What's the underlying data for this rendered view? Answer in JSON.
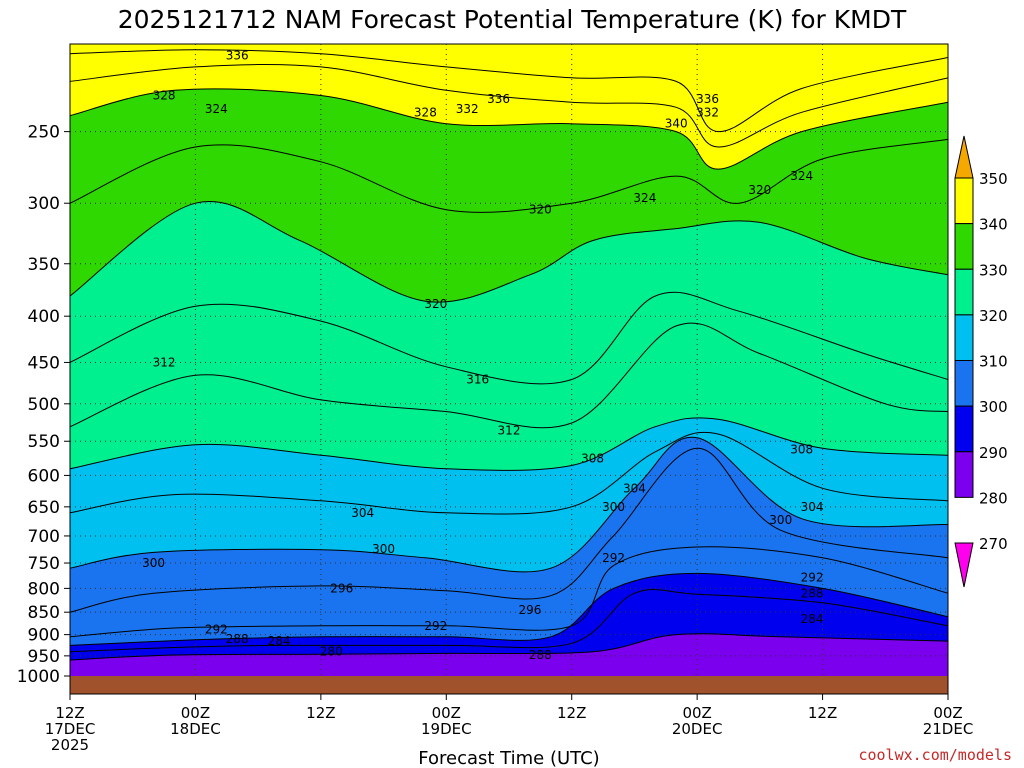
{
  "chart_data": {
    "type": "heatmap",
    "title": "2025121712 NAM Forecast Potential Temperature (K) for KMDT",
    "xlabel": "Forecast Time (UTC)",
    "ylabel": "",
    "x_ticks": [
      {
        "hour": 0,
        "line1": "12Z",
        "line2": "17DEC",
        "line3": "2025"
      },
      {
        "hour": 12,
        "line1": "00Z",
        "line2": "18DEC",
        "line3": ""
      },
      {
        "hour": 24,
        "line1": "12Z",
        "line2": "",
        "line3": ""
      },
      {
        "hour": 36,
        "line1": "00Z",
        "line2": "19DEC",
        "line3": ""
      },
      {
        "hour": 48,
        "line1": "12Z",
        "line2": "",
        "line3": ""
      },
      {
        "hour": 60,
        "line1": "00Z",
        "line2": "20DEC",
        "line3": ""
      },
      {
        "hour": 72,
        "line1": "12Z",
        "line2": "",
        "line3": ""
      },
      {
        "hour": 84,
        "line1": "00Z",
        "line2": "21DEC",
        "line3": ""
      }
    ],
    "x_range": [
      0,
      84
    ],
    "y_ticks": [
      250,
      300,
      350,
      400,
      450,
      500,
      550,
      600,
      650,
      700,
      750,
      800,
      850,
      900,
      950,
      1000
    ],
    "y_range": [
      200,
      1000
    ],
    "y_scale": "log-pressure",
    "grid": true,
    "colorbar": {
      "position": "right",
      "labels": [
        350,
        340,
        330,
        320,
        310,
        300,
        290,
        280,
        270
      ],
      "bands": [
        {
          "from": 340,
          "to": 350,
          "color": "#f5a800"
        },
        {
          "from": 330,
          "to": 340,
          "color": "#ffff00"
        },
        {
          "from": 320,
          "to": 330,
          "color": "#2ed800"
        },
        {
          "from": 310,
          "to": 320,
          "color": "#00f090"
        },
        {
          "from": 300,
          "to": 310,
          "color": "#00c0f0"
        },
        {
          "from": 290,
          "to": 300,
          "color": "#1a74ef"
        },
        {
          "from": 280,
          "to": 290,
          "color": "#0000ee"
        },
        {
          "from": 270,
          "to": 280,
          "color": "#7a00ee"
        },
        {
          "from": 260,
          "to": 270,
          "color": "#ff00ee"
        }
      ]
    },
    "contours": [
      {
        "level": 280,
        "points": [
          [
            0,
            960
          ],
          [
            10,
            948
          ],
          [
            24,
            946
          ],
          [
            36,
            944
          ],
          [
            50,
            940
          ],
          [
            58,
            900
          ],
          [
            68,
            905
          ],
          [
            84,
            915
          ]
        ]
      },
      {
        "level": 284,
        "points": [
          [
            0,
            940
          ],
          [
            10,
            930
          ],
          [
            20,
            925
          ],
          [
            36,
            925
          ],
          [
            48,
            920
          ],
          [
            54,
            810
          ],
          [
            60,
            812
          ],
          [
            72,
            830
          ],
          [
            84,
            880
          ]
        ]
      },
      {
        "level": 288,
        "points": [
          [
            0,
            925
          ],
          [
            12,
            912
          ],
          [
            24,
            905
          ],
          [
            36,
            905
          ],
          [
            46,
            905
          ],
          [
            52,
            800
          ],
          [
            60,
            770
          ],
          [
            72,
            800
          ],
          [
            84,
            860
          ]
        ]
      },
      {
        "level": 292,
        "points": [
          [
            0,
            905
          ],
          [
            10,
            885
          ],
          [
            24,
            880
          ],
          [
            36,
            880
          ],
          [
            48,
            880
          ],
          [
            52,
            755
          ],
          [
            60,
            720
          ],
          [
            72,
            740
          ],
          [
            84,
            810
          ]
        ]
      },
      {
        "level": 296,
        "points": [
          [
            0,
            850
          ],
          [
            8,
            810
          ],
          [
            24,
            795
          ],
          [
            36,
            805
          ],
          [
            46,
            815
          ],
          [
            52,
            700
          ],
          [
            60,
            560
          ],
          [
            68,
            690
          ],
          [
            84,
            740
          ]
        ]
      },
      {
        "level": 300,
        "points": [
          [
            0,
            760
          ],
          [
            8,
            730
          ],
          [
            24,
            725
          ],
          [
            34,
            740
          ],
          [
            46,
            760
          ],
          [
            54,
            620
          ],
          [
            60,
            545
          ],
          [
            70,
            670
          ],
          [
            84,
            680
          ]
        ]
      },
      {
        "level": 304,
        "points": [
          [
            0,
            660
          ],
          [
            10,
            630
          ],
          [
            24,
            640
          ],
          [
            36,
            660
          ],
          [
            48,
            650
          ],
          [
            56,
            565
          ],
          [
            62,
            540
          ],
          [
            72,
            620
          ],
          [
            84,
            640
          ]
        ]
      },
      {
        "level": 308,
        "points": [
          [
            0,
            590
          ],
          [
            12,
            555
          ],
          [
            24,
            570
          ],
          [
            36,
            590
          ],
          [
            48,
            585
          ],
          [
            56,
            530
          ],
          [
            62,
            520
          ],
          [
            72,
            560
          ],
          [
            84,
            570
          ]
        ]
      },
      {
        "level": 312,
        "points": [
          [
            0,
            530
          ],
          [
            12,
            465
          ],
          [
            24,
            495
          ],
          [
            36,
            510
          ],
          [
            48,
            525
          ],
          [
            58,
            410
          ],
          [
            66,
            440
          ],
          [
            78,
            500
          ],
          [
            84,
            510
          ]
        ]
      },
      {
        "level": 316,
        "points": [
          [
            0,
            450
          ],
          [
            12,
            390
          ],
          [
            24,
            405
          ],
          [
            36,
            455
          ],
          [
            48,
            470
          ],
          [
            56,
            380
          ],
          [
            64,
            395
          ],
          [
            76,
            440
          ],
          [
            84,
            470
          ]
        ]
      },
      {
        "level": 320,
        "points": [
          [
            0,
            380
          ],
          [
            12,
            300
          ],
          [
            22,
            330
          ],
          [
            34,
            385
          ],
          [
            44,
            360
          ],
          [
            50,
            330
          ],
          [
            58,
            320
          ],
          [
            66,
            315
          ],
          [
            76,
            345
          ],
          [
            84,
            360
          ]
        ]
      },
      {
        "level": 324,
        "points": [
          [
            0,
            300
          ],
          [
            12,
            260
          ],
          [
            24,
            270
          ],
          [
            36,
            305
          ],
          [
            48,
            300
          ],
          [
            58,
            280
          ],
          [
            64,
            300
          ],
          [
            72,
            268
          ],
          [
            84,
            255
          ]
        ]
      },
      {
        "level": 328,
        "points": [
          [
            0,
            240
          ],
          [
            10,
            225
          ],
          [
            24,
            228
          ],
          [
            36,
            245
          ],
          [
            48,
            245
          ],
          [
            58,
            250
          ],
          [
            62,
            275
          ],
          [
            70,
            250
          ],
          [
            84,
            232
          ]
        ]
      },
      {
        "level": 332,
        "points": [
          [
            0,
            220
          ],
          [
            12,
            212
          ],
          [
            24,
            212
          ],
          [
            36,
            225
          ],
          [
            48,
            232
          ],
          [
            58,
            235
          ],
          [
            62,
            260
          ],
          [
            70,
            238
          ],
          [
            84,
            218
          ]
        ]
      },
      {
        "level": 336,
        "points": [
          [
            0,
            205
          ],
          [
            12,
            203
          ],
          [
            24,
            205
          ],
          [
            36,
            212
          ],
          [
            48,
            218
          ],
          [
            58,
            220
          ],
          [
            62,
            250
          ],
          [
            70,
            224
          ],
          [
            84,
            207
          ]
        ]
      }
    ],
    "contour_labels": [
      {
        "text": "336",
        "hour": 16,
        "p": 206
      },
      {
        "text": "328",
        "hour": 9,
        "p": 228
      },
      {
        "text": "324",
        "hour": 14,
        "p": 236
      },
      {
        "text": "328",
        "hour": 34,
        "p": 238
      },
      {
        "text": "332",
        "hour": 38,
        "p": 236
      },
      {
        "text": "336",
        "hour": 41,
        "p": 230
      },
      {
        "text": "336",
        "hour": 61,
        "p": 230
      },
      {
        "text": "332",
        "hour": 61,
        "p": 238
      },
      {
        "text": "340",
        "hour": 58,
        "p": 245
      },
      {
        "text": "324",
        "hour": 70,
        "p": 280
      },
      {
        "text": "320",
        "hour": 66,
        "p": 290
      },
      {
        "text": "324",
        "hour": 55,
        "p": 296
      },
      {
        "text": "320",
        "hour": 45,
        "p": 305
      },
      {
        "text": "320",
        "hour": 35,
        "p": 388
      },
      {
        "text": "312",
        "hour": 9,
        "p": 450
      },
      {
        "text": "316",
        "hour": 39,
        "p": 470
      },
      {
        "text": "312",
        "hour": 42,
        "p": 535
      },
      {
        "text": "308",
        "hour": 50,
        "p": 575
      },
      {
        "text": "308",
        "hour": 70,
        "p": 562
      },
      {
        "text": "304",
        "hour": 54,
        "p": 620
      },
      {
        "text": "304",
        "hour": 28,
        "p": 660
      },
      {
        "text": "300",
        "hour": 52,
        "p": 650
      },
      {
        "text": "304",
        "hour": 71,
        "p": 650
      },
      {
        "text": "300",
        "hour": 68,
        "p": 672
      },
      {
        "text": "300",
        "hour": 30,
        "p": 724
      },
      {
        "text": "300",
        "hour": 8,
        "p": 750
      },
      {
        "text": "292",
        "hour": 52,
        "p": 740
      },
      {
        "text": "292",
        "hour": 71,
        "p": 778
      },
      {
        "text": "296",
        "hour": 26,
        "p": 800
      },
      {
        "text": "288",
        "hour": 71,
        "p": 810
      },
      {
        "text": "296",
        "hour": 44,
        "p": 845
      },
      {
        "text": "284",
        "hour": 71,
        "p": 865
      },
      {
        "text": "292",
        "hour": 14,
        "p": 888
      },
      {
        "text": "292",
        "hour": 35,
        "p": 880
      },
      {
        "text": "288",
        "hour": 16,
        "p": 910
      },
      {
        "text": "284",
        "hour": 20,
        "p": 915
      },
      {
        "text": "280",
        "hour": 25,
        "p": 940
      },
      {
        "text": "288",
        "hour": 45,
        "p": 948
      }
    ]
  },
  "credit": "coolwx.com/models"
}
